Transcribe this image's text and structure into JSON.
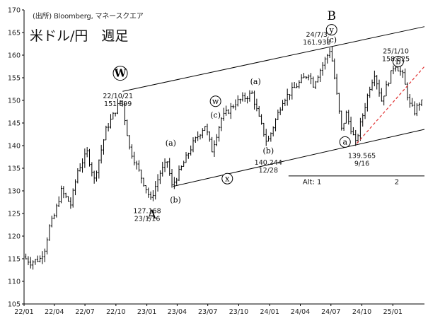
{
  "header": {
    "source": "(出所) Bloomberg, マネースクエア",
    "title": "米ドル/円　週足"
  },
  "chart_data": {
    "type": "candlestick",
    "title": "米ドル/円　週足",
    "source": "(出所) Bloomberg, マネースクエア",
    "frequency": "weekly",
    "xlabel": "",
    "ylabel": "",
    "ylim": [
      105,
      170
    ],
    "y_ticks": [
      105,
      110,
      115,
      120,
      125,
      130,
      135,
      140,
      145,
      150,
      155,
      160,
      165,
      170
    ],
    "x_ticks": [
      "22/01",
      "22/04",
      "22/07",
      "22/10",
      "23/01",
      "23/04",
      "23/07",
      "23/10",
      "24/01",
      "24/04",
      "24/07",
      "24/10",
      "25/01"
    ],
    "x_range": [
      "2022-01-01",
      "2025-04-05"
    ],
    "grid": false,
    "colors": {
      "candle": "#000000",
      "trendline": "#000000",
      "dashed_trendline": "#e03030"
    },
    "price_path": [
      [
        "2022-01-03",
        115.4
      ],
      [
        "2022-01-24",
        114.2
      ],
      [
        "2022-02-21",
        115.0
      ],
      [
        "2022-03-07",
        117.2
      ],
      [
        "2022-03-21",
        122.0
      ],
      [
        "2022-04-04",
        124.5
      ],
      [
        "2022-04-25",
        130.0
      ],
      [
        "2022-05-23",
        127.0
      ],
      [
        "2022-06-13",
        134.5
      ],
      [
        "2022-07-11",
        138.5
      ],
      [
        "2022-08-01",
        132.5
      ],
      [
        "2022-09-05",
        143.5
      ],
      [
        "2022-10-21",
        150.5
      ],
      [
        "2022-11-14",
        139.5
      ],
      [
        "2022-12-19",
        133.0
      ],
      [
        "2023-01-16",
        128.0
      ],
      [
        "2023-02-13",
        134.0
      ],
      [
        "2023-03-06",
        136.5
      ],
      [
        "2023-03-20",
        131.0
      ],
      [
        "2023-04-03",
        133.0
      ],
      [
        "2023-05-22",
        140.5
      ],
      [
        "2023-06-26",
        144.5
      ],
      [
        "2023-07-17",
        139.0
      ],
      [
        "2023-08-14",
        146.0
      ],
      [
        "2023-09-25",
        149.5
      ],
      [
        "2023-11-13",
        151.5
      ],
      [
        "2023-12-04",
        146.0
      ],
      [
        "2023-12-28",
        140.5
      ],
      [
        "2024-02-12",
        150.0
      ],
      [
        "2024-04-29",
        156.0
      ],
      [
        "2024-05-13",
        153.5
      ],
      [
        "2024-06-24",
        160.0
      ],
      [
        "2024-07-03",
        161.5
      ],
      [
        "2024-08-05",
        143.5
      ],
      [
        "2024-08-19",
        147.0
      ],
      [
        "2024-09-16",
        140.5
      ],
      [
        "2024-10-28",
        153.0
      ],
      [
        "2024-11-11",
        156.0
      ],
      [
        "2024-12-02",
        150.0
      ],
      [
        "2025-01-10",
        158.2
      ],
      [
        "2025-02-03",
        155.5
      ],
      [
        "2025-02-24",
        149.0
      ],
      [
        "2025-03-10",
        147.5
      ],
      [
        "2025-03-24",
        149.5
      ]
    ],
    "trendlines": [
      {
        "style": "solid",
        "from": [
          "2022-10-21",
          152.0
        ],
        "to": [
          "2025-04-05",
          166.3
        ]
      },
      {
        "style": "solid",
        "from": [
          "2023-03-20",
          131.0
        ],
        "to": [
          "2025-04-05",
          143.6
        ]
      },
      {
        "style": "dashed",
        "from": [
          "2024-09-16",
          140.5
        ],
        "to": [
          "2025-04-05",
          157.5
        ]
      }
    ],
    "reference_line": {
      "level": 133.3,
      "from": "2024-02-26",
      "to": "2025-04-05"
    },
    "wave_labels": [
      {
        "text": "W",
        "circled": true,
        "date": "2022-10-14",
        "price": 156.0
      },
      {
        "text": "A",
        "circled": false,
        "date": "2023-01-16",
        "price": 123.9
      },
      {
        "text": "(a)",
        "circled": false,
        "date": "2023-03-13",
        "price": 140.0
      },
      {
        "text": "(b)",
        "circled": false,
        "date": "2023-03-27",
        "price": 127.4
      },
      {
        "text": "w",
        "circled": true,
        "date": "2023-07-24",
        "price": 149.8
      },
      {
        "text": "(c)",
        "circled": false,
        "date": "2023-07-24",
        "price": 146.2
      },
      {
        "text": "x",
        "circled": true,
        "date": "2023-08-28",
        "price": 132.7
      },
      {
        "text": "(a)",
        "circled": false,
        "date": "2023-11-20",
        "price": 153.6
      },
      {
        "text": "(b)",
        "circled": false,
        "date": "2023-12-28",
        "price": 138.3
      },
      {
        "text": "B",
        "circled": false,
        "date": "2024-07-03",
        "price": 167.8
      },
      {
        "text": "y",
        "circled": true,
        "date": "2024-07-03",
        "price": 165.6
      },
      {
        "text": "(c)",
        "circled": false,
        "date": "2024-07-03",
        "price": 162.8
      },
      {
        "text": "a",
        "circled": true,
        "date": "2024-08-12",
        "price": 140.8
      },
      {
        "text": "b",
        "circled": true,
        "date": "2025-01-17",
        "price": 158.6
      }
    ],
    "annotations": [
      {
        "lines": [
          "22/10/21",
          "151.899"
        ],
        "date": "2022-10-07",
        "price": 150.5
      },
      {
        "lines": [
          "127.168",
          "23/1/16"
        ],
        "date": "2023-01-02",
        "price": 125.1
      },
      {
        "lines": [
          "140.244",
          "12/28"
        ],
        "date": "2023-12-28",
        "price": 135.8
      },
      {
        "lines": [
          "24/7/3",
          "161.938"
        ],
        "date": "2024-05-20",
        "price": 164.1
      },
      {
        "lines": [
          "139.565",
          "9/16"
        ],
        "date": "2024-10-01",
        "price": 137.3
      },
      {
        "lines": [
          "25/1/10",
          "158.825"
        ],
        "date": "2025-01-10",
        "price": 160.4
      }
    ],
    "alt_labels": [
      {
        "text": "Alt: 1",
        "date": "2024-05-06",
        "price": 131.5
      },
      {
        "text": "2",
        "date": "2025-01-13",
        "price": 131.5
      }
    ]
  }
}
